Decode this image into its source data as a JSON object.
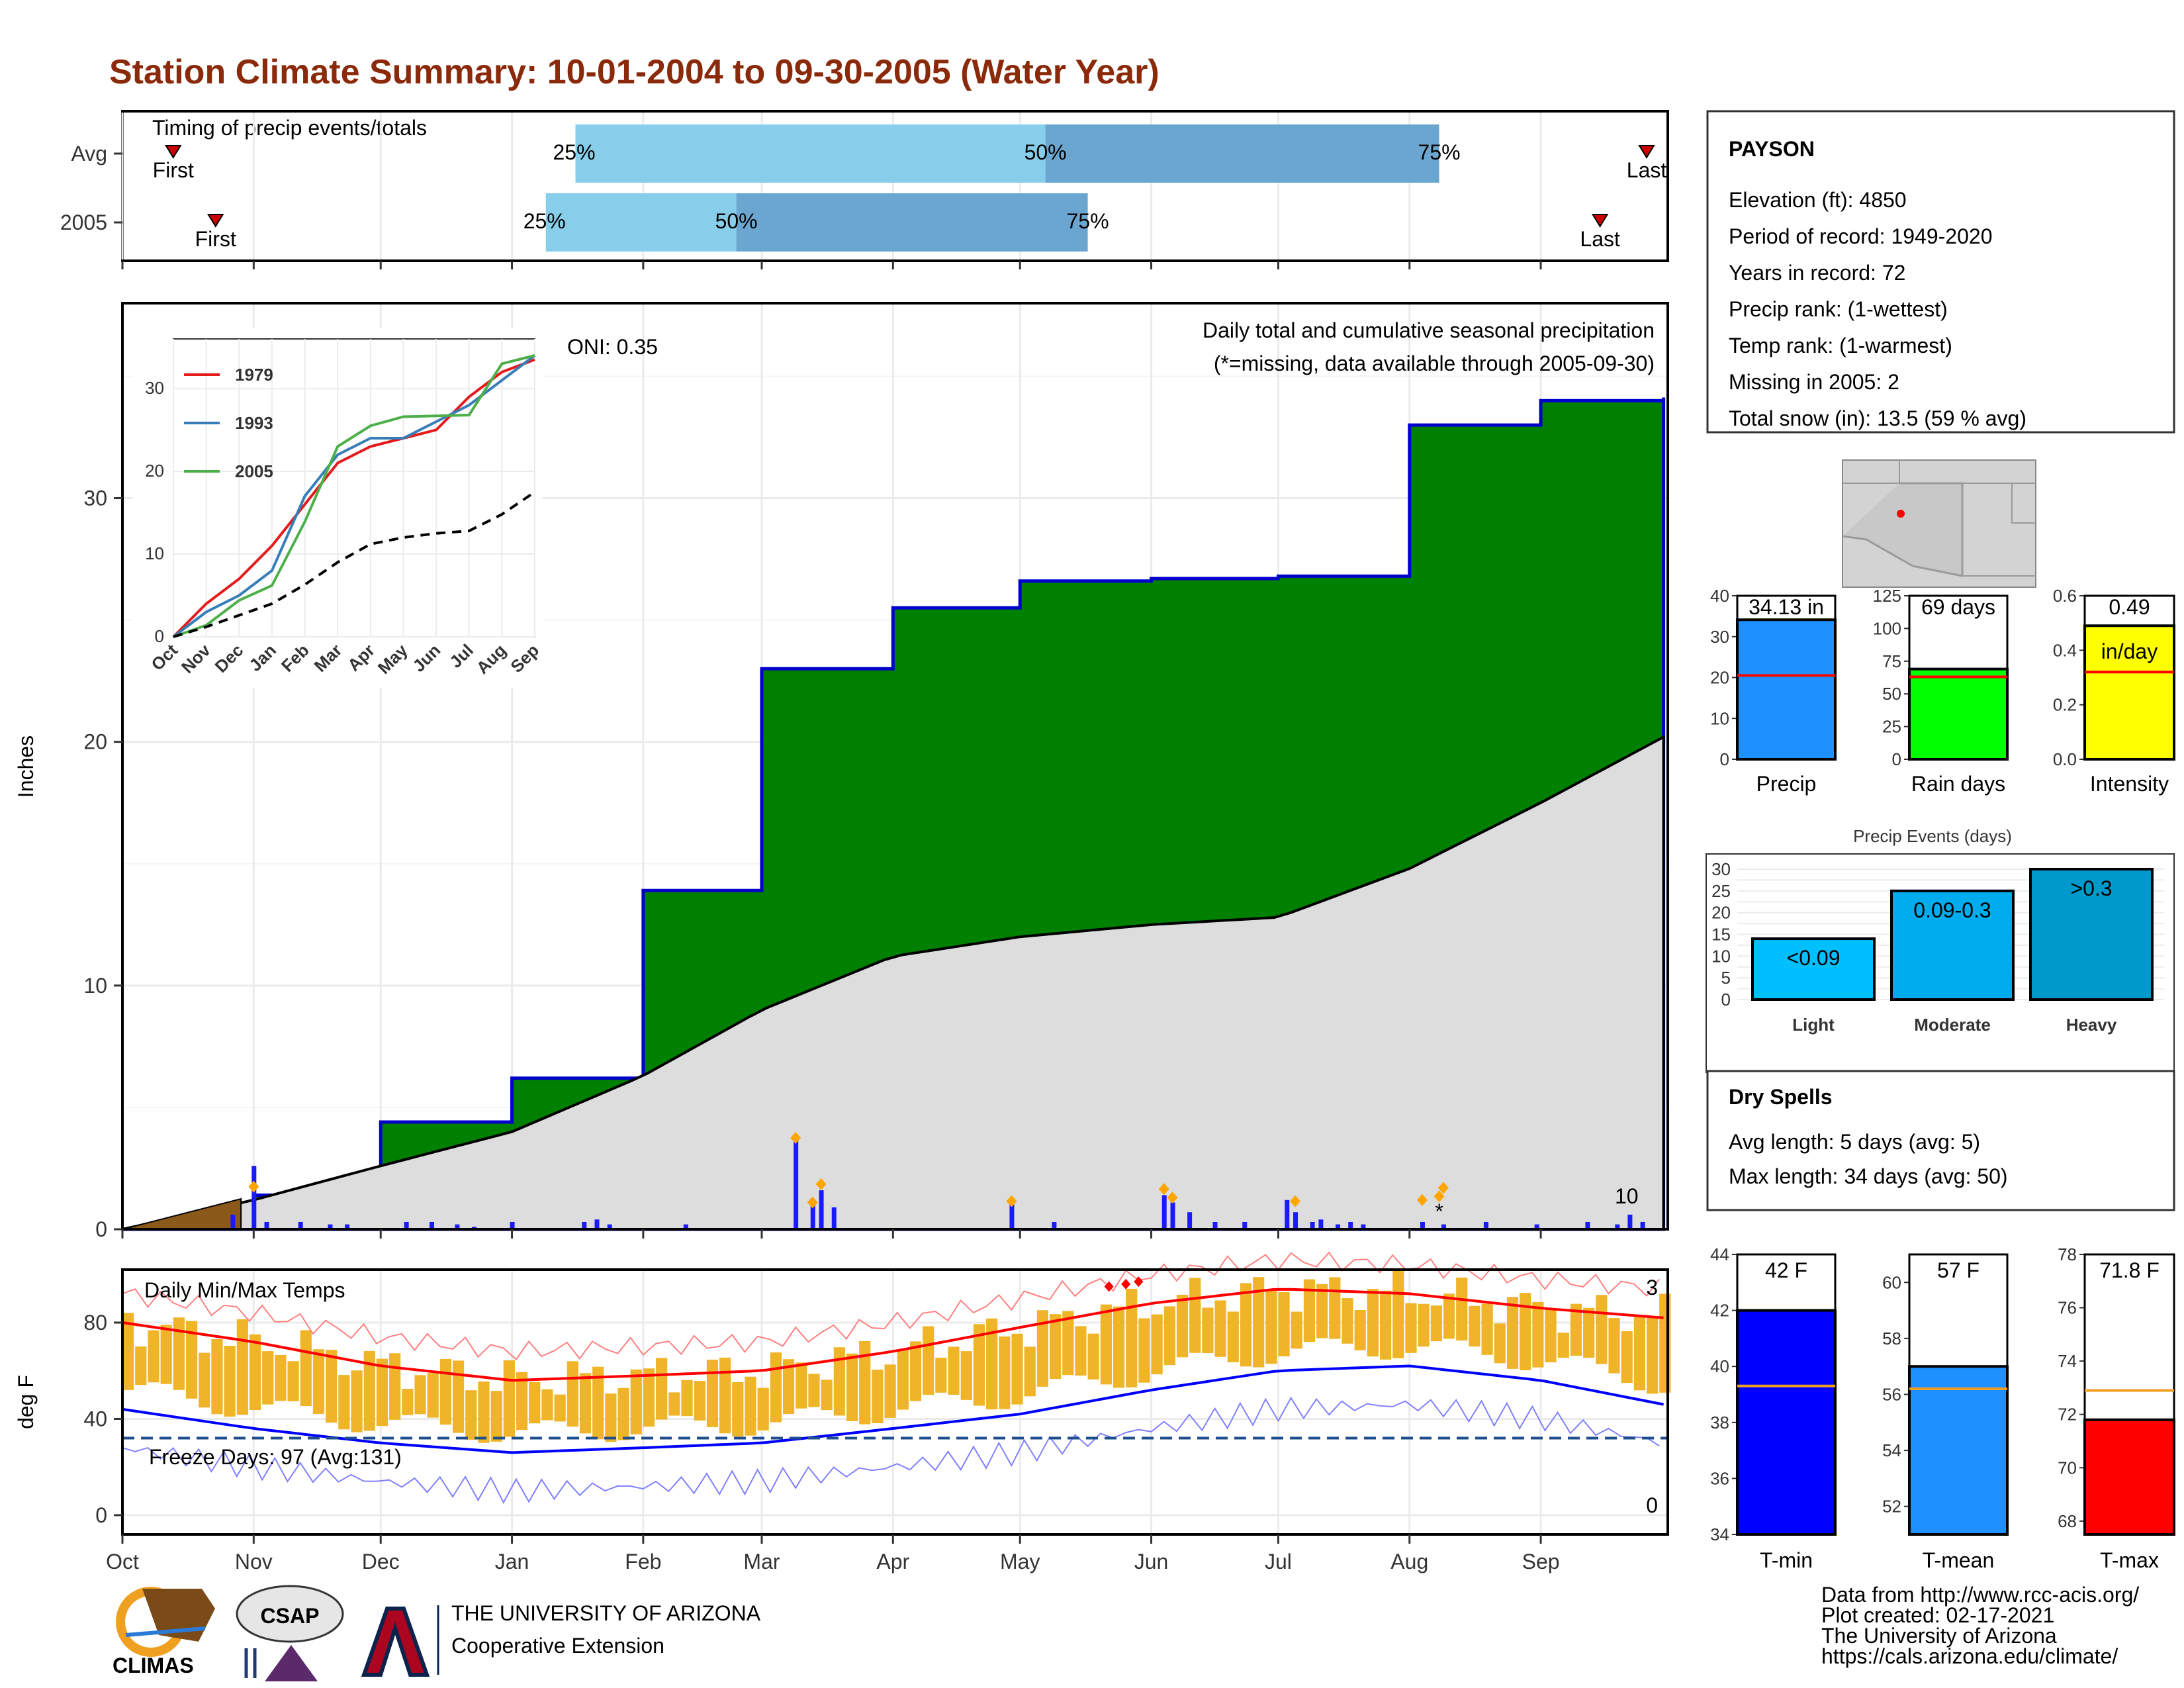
{
  "title": "Station Climate Summary: 10-01-2004 to 09-30-2005 (Water Year)",
  "colors": {
    "title": "#8b2a0a",
    "cum_fill": "#008000",
    "cum_line": "#0000cc",
    "avg_fill": "#dddddd",
    "temp_bar": "#f0b428",
    "dry": "#a52a2a"
  },
  "timing_panel": {
    "label": "Timing of precip events/totals",
    "rows": [
      {
        "name": "Avg",
        "first_label": "First",
        "last_label": "Last",
        "p25": "25%",
        "p50": "50%",
        "p75": "75%",
        "first_day": 12,
        "p25_day": 107,
        "p50_day": 218,
        "p75_day": 311,
        "last_day": 360
      },
      {
        "name": "2005",
        "first_label": "First",
        "last_label": "Last",
        "p25": "25%",
        "p50": "50%",
        "p75": "75%",
        "first_day": 22,
        "p25_day": 100,
        "p50_day": 145,
        "p75_day": 228,
        "last_day": 349
      }
    ]
  },
  "precip_panel": {
    "ylabel": "Inches",
    "header": "Daily total and cumulative seasonal precipitation",
    "missing_note": "(*=missing, data available through 2005-09-30)",
    "oni": "ONI: 0.35",
    "yticks": [
      "0",
      "10",
      "20",
      "30"
    ],
    "count_label": "10"
  },
  "inset": {
    "xticks": [
      "Oct",
      "Nov",
      "Dec",
      "Jan",
      "Feb",
      "Mar",
      "Apr",
      "May",
      "Jun",
      "Jul",
      "Aug",
      "Sep"
    ],
    "yticks": [
      "0",
      "10",
      "20",
      "30"
    ],
    "legend": [
      {
        "name": "1979",
        "color": "#e41a1c"
      },
      {
        "name": "1993",
        "color": "#377eb8"
      },
      {
        "name": "2005",
        "color": "#4daf4a"
      }
    ]
  },
  "temp_panel": {
    "ylabel": "deg F",
    "label": "Daily Min/Max Temps",
    "freeze": "Freeze Days: 97 (Avg:131)",
    "yticks": [
      "0",
      "40",
      "80"
    ],
    "max_count": "3",
    "min_count": "0"
  },
  "months": [
    "Oct",
    "Nov",
    "Dec",
    "Jan",
    "Feb",
    "Mar",
    "Apr",
    "May",
    "Jun",
    "Jul",
    "Aug",
    "Sep"
  ],
  "station": {
    "name": "PAYSON",
    "lines": [
      "Elevation (ft): 4850",
      "Period of record: 1949-2020",
      "Years in record: 72",
      "Precip rank:  (1-wettest)",
      "Temp rank:  (1-warmest)",
      "Missing in 2005: 2",
      "Total snow (in): 13.5 (59 % avg)"
    ]
  },
  "summary_bars": [
    {
      "label": "Precip",
      "value_label": "34.13 in",
      "value": 34.13,
      "avg": 20.5,
      "max": 40,
      "yticks": [
        "0",
        "10",
        "20",
        "30",
        "40"
      ],
      "color": "#1e90ff"
    },
    {
      "label": "Rain days",
      "value_label": "69 days",
      "value": 69,
      "avg": 63,
      "max": 125,
      "yticks": [
        "0",
        "25",
        "50",
        "75",
        "100",
        "125"
      ],
      "color": "#00ff00"
    },
    {
      "label": "Intensity",
      "value_label": "0.49",
      "unit": "in/day",
      "value": 0.49,
      "avg": 0.32,
      "max": 0.6,
      "yticks": [
        "0.0",
        "0.2",
        "0.4",
        "0.6"
      ],
      "color": "#ffff00"
    }
  ],
  "events": {
    "title": "Precip Events (days)",
    "yticks": [
      "0",
      "5",
      "10",
      "15",
      "20",
      "25",
      "30"
    ],
    "bars": [
      {
        "label": "Light",
        "range": "<0.09",
        "value": 14,
        "color": "#00bfff"
      },
      {
        "label": "Moderate",
        "range": "0.09-0.3",
        "value": 25,
        "color": "#00acee"
      },
      {
        "label": "Heavy",
        "range": ">0.3",
        "value": 30,
        "color": "#0099cc"
      }
    ]
  },
  "dry_spells": {
    "title": "Dry Spells",
    "avg": "Avg length: 5 days (avg: 5)",
    "max": "Max length: 34 days (avg: 50)"
  },
  "temp_bars": [
    {
      "label": "T-min",
      "value_label": "42 F",
      "value": 42,
      "avg": 39.3,
      "min": 34,
      "max": 44,
      "yticks": [
        "34",
        "36",
        "38",
        "40",
        "42",
        "44"
      ],
      "color": "#0000ff"
    },
    {
      "label": "T-mean",
      "value_label": "57 F",
      "value": 57,
      "avg": 56.2,
      "min": 51,
      "max": 61,
      "yticks": [
        "52",
        "54",
        "56",
        "58",
        "60"
      ],
      "color": "#1e90ff"
    },
    {
      "label": "T-max",
      "value_label": "71.8 F",
      "value": 71.8,
      "avg": 72.9,
      "min": 67.5,
      "max": 78,
      "yticks": [
        "68",
        "70",
        "72",
        "74",
        "76",
        "78"
      ],
      "color": "#ff0000"
    }
  ],
  "credits": [
    "Data from http://www.rcc-acis.org/",
    "Plot created: 02-17-2021",
    "The University of Arizona",
    "https://cals.arizona.edu/climate/"
  ],
  "logos": {
    "climas": "CLIMAS",
    "csap": "CSAP",
    "ua_small": "THE UNIVERSITY OF ARIZONA",
    "ua_big": "Cooperative Extension"
  },
  "chart_data": [
    {
      "type": "area",
      "title": "Daily total and cumulative seasonal precipitation",
      "ylabel": "Inches",
      "xlabel": "",
      "ylim": [
        0,
        38
      ],
      "x": [
        "Oct",
        "Nov",
        "Dec",
        "Jan",
        "Feb",
        "Mar",
        "Apr",
        "May",
        "Jun",
        "Jul",
        "Aug",
        "Sep",
        "Sep 30"
      ],
      "series": [
        {
          "name": "2005",
          "values": [
            0,
            1.4,
            4.4,
            6.2,
            13.9,
            23.0,
            25.5,
            26.6,
            26.7,
            26.8,
            33.0,
            34.0,
            34.13
          ]
        },
        {
          "values": [
            0,
            1.2,
            2.6,
            4.0,
            6.3,
            9.0,
            11.2,
            12.0,
            12.5,
            12.8,
            14.8,
            17.5,
            20.2
          ]
        }
      ]
    },
    {
      "type": "line",
      "title": "Daily Min/Max Temps",
      "ylabel": "deg F",
      "ylim": [
        -8,
        102
      ],
      "x": [
        "Oct",
        "Nov",
        "Dec",
        "Jan",
        "Feb",
        "Mar",
        "Apr",
        "May",
        "Jun",
        "Jul",
        "Aug",
        "Sep",
        "Sep 30"
      ],
      "series": [
        {
          "values": [
            80,
            72,
            62,
            56,
            58,
            60,
            68,
            78,
            88,
            94,
            92,
            86,
            82
          ]
        },
        {
          "values": [
            44,
            36,
            30,
            26,
            28,
            30,
            36,
            42,
            52,
            60,
            62,
            56,
            46
          ]
        }
      ]
    },
    {
      "type": "line",
      "title": "",
      "xlabel": "",
      "ylabel": "",
      "ylim": [
        0,
        36
      ],
      "x": [
        "Oct",
        "Nov",
        "Dec",
        "Jan",
        "Feb",
        "Mar",
        "Apr",
        "May",
        "Jun",
        "Jul",
        "Aug",
        "Sep"
      ],
      "series": [
        {
          "name": "1979",
          "values": [
            0,
            4,
            7,
            11,
            16,
            21,
            23,
            24,
            25,
            29,
            32,
            33.5
          ]
        },
        {
          "name": "1993",
          "values": [
            0,
            3,
            5,
            8,
            17,
            22,
            24,
            24,
            26,
            28,
            31,
            34
          ]
        },
        {
          "name": "2005",
          "values": [
            0,
            1.4,
            4.4,
            6.2,
            13.9,
            23.0,
            25.5,
            26.6,
            26.7,
            26.8,
            33.0,
            34.0
          ]
        },
        {
          "values": [
            0,
            1.2,
            2.6,
            4.0,
            6.3,
            9.0,
            11.2,
            12.0,
            12.5,
            12.8,
            14.8,
            17.5
          ]
        }
      ]
    },
    {
      "type": "bar",
      "title": "Precip Events (days)",
      "categories": [
        "Light",
        "Moderate",
        "Heavy"
      ],
      "values": [
        14,
        25,
        30
      ],
      "ylim": [
        0,
        30
      ]
    }
  ]
}
